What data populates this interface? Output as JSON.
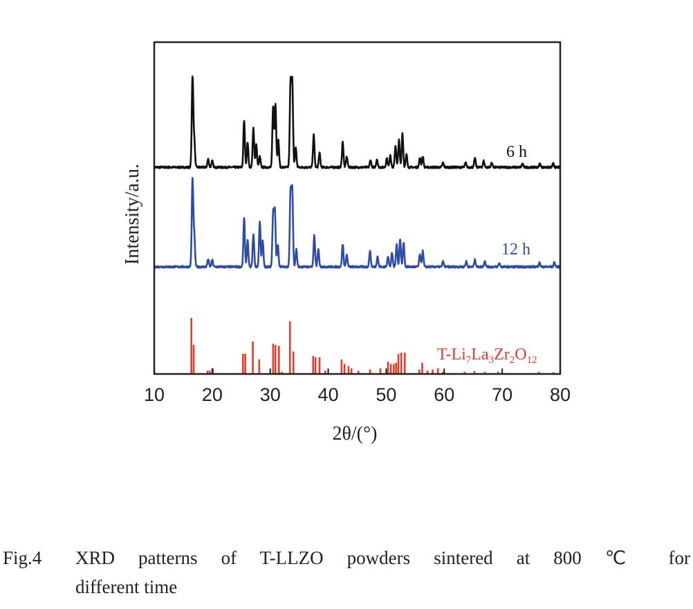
{
  "chart_data": {
    "type": "line",
    "title": "",
    "xlabel": "2θ/(°)",
    "ylabel": "Intensity/a.u.",
    "xlim": [
      10,
      80
    ],
    "xticks": [
      "10",
      "20",
      "30",
      "40",
      "50",
      "60",
      "70",
      "80"
    ],
    "grid": false,
    "series": [
      {
        "name": "6 h",
        "kind": "line",
        "color": "#111111",
        "peaks": [
          [
            16.6,
            1.0
          ],
          [
            16.9,
            0.3
          ],
          [
            19.3,
            0.09
          ],
          [
            20.0,
            0.07
          ],
          [
            25.5,
            0.52
          ],
          [
            26.1,
            0.28
          ],
          [
            27.1,
            0.44
          ],
          [
            27.6,
            0.25
          ],
          [
            28.2,
            0.12
          ],
          [
            30.5,
            0.68
          ],
          [
            30.9,
            0.71
          ],
          [
            31.4,
            0.3
          ],
          [
            33.5,
            0.92
          ],
          [
            33.8,
            0.94
          ],
          [
            34.4,
            0.22
          ],
          [
            37.5,
            0.36
          ],
          [
            38.5,
            0.16
          ],
          [
            42.5,
            0.28
          ],
          [
            43.2,
            0.12
          ],
          [
            47.3,
            0.08
          ],
          [
            48.4,
            0.09
          ],
          [
            50.1,
            0.1
          ],
          [
            50.7,
            0.14
          ],
          [
            51.6,
            0.24
          ],
          [
            52.2,
            0.3
          ],
          [
            52.8,
            0.38
          ],
          [
            53.5,
            0.14
          ],
          [
            55.8,
            0.1
          ],
          [
            56.3,
            0.12
          ],
          [
            59.8,
            0.05
          ],
          [
            63.7,
            0.05
          ],
          [
            65.3,
            0.1
          ],
          [
            66.8,
            0.07
          ],
          [
            68.2,
            0.05
          ],
          [
            73.5,
            0.04
          ],
          [
            76.5,
            0.04
          ],
          [
            78.8,
            0.04
          ]
        ]
      },
      {
        "name": "12 h",
        "kind": "line",
        "color": "#2e4ba6",
        "peaks": [
          [
            16.6,
            1.0
          ],
          [
            16.9,
            0.35
          ],
          [
            19.3,
            0.09
          ],
          [
            20.0,
            0.08
          ],
          [
            25.5,
            0.56
          ],
          [
            26.1,
            0.3
          ],
          [
            27.1,
            0.38
          ],
          [
            28.2,
            0.53
          ],
          [
            28.7,
            0.3
          ],
          [
            30.5,
            0.62
          ],
          [
            30.8,
            0.64
          ],
          [
            31.3,
            0.26
          ],
          [
            33.5,
            0.85
          ],
          [
            33.8,
            0.88
          ],
          [
            34.5,
            0.2
          ],
          [
            37.6,
            0.36
          ],
          [
            38.3,
            0.2
          ],
          [
            42.5,
            0.26
          ],
          [
            43.2,
            0.14
          ],
          [
            47.2,
            0.18
          ],
          [
            48.5,
            0.12
          ],
          [
            50.3,
            0.12
          ],
          [
            51.0,
            0.16
          ],
          [
            51.8,
            0.26
          ],
          [
            52.4,
            0.32
          ],
          [
            53.0,
            0.28
          ],
          [
            55.8,
            0.14
          ],
          [
            56.3,
            0.18
          ],
          [
            59.8,
            0.06
          ],
          [
            63.8,
            0.06
          ],
          [
            65.3,
            0.08
          ],
          [
            67.0,
            0.07
          ],
          [
            69.5,
            0.04
          ],
          [
            76.4,
            0.05
          ],
          [
            79.0,
            0.05
          ]
        ]
      },
      {
        "name": "T-Li7La3Zr2O12",
        "kind": "sticks",
        "color": "#e8392a",
        "peaks": [
          [
            16.4,
            1.0
          ],
          [
            16.8,
            0.52
          ],
          [
            19.2,
            0.06
          ],
          [
            19.6,
            0.06
          ],
          [
            20.1,
            0.1
          ],
          [
            25.3,
            0.36
          ],
          [
            25.7,
            0.36
          ],
          [
            27.0,
            0.58
          ],
          [
            28.1,
            0.26
          ],
          [
            30.5,
            0.54
          ],
          [
            30.9,
            0.52
          ],
          [
            31.5,
            0.5
          ],
          [
            32.0,
            0.04
          ],
          [
            33.4,
            0.94
          ],
          [
            34.0,
            0.4
          ],
          [
            37.4,
            0.32
          ],
          [
            37.8,
            0.3
          ],
          [
            38.5,
            0.3
          ],
          [
            39.5,
            0.06
          ],
          [
            42.3,
            0.26
          ],
          [
            42.8,
            0.18
          ],
          [
            43.5,
            0.14
          ],
          [
            44.0,
            0.1
          ],
          [
            45.2,
            0.06
          ],
          [
            47.2,
            0.08
          ],
          [
            49.0,
            0.1
          ],
          [
            50.3,
            0.22
          ],
          [
            50.8,
            0.18
          ],
          [
            51.3,
            0.18
          ],
          [
            51.7,
            0.2
          ],
          [
            52.1,
            0.36
          ],
          [
            52.6,
            0.38
          ],
          [
            53.2,
            0.38
          ],
          [
            55.7,
            0.08
          ],
          [
            56.2,
            0.2
          ],
          [
            57.1,
            0.06
          ],
          [
            58.0,
            0.08
          ],
          [
            58.9,
            0.1
          ],
          [
            59.8,
            0.04
          ],
          [
            63.5,
            0.04
          ],
          [
            65.2,
            0.05
          ],
          [
            67.0,
            0.04
          ],
          [
            69.3,
            0.04
          ],
          [
            76.3,
            0.04
          ],
          [
            78.8,
            0.03
          ]
        ]
      }
    ]
  },
  "labels": {
    "series_6h": "6 h",
    "series_12h": "12 h",
    "ref_main": "T-Li",
    "ref_sub1": "7",
    "ref_La": "La",
    "ref_sub2": "3",
    "ref_Zr": "Zr",
    "ref_sub3": "2",
    "ref_O": "O",
    "ref_sub4": "12"
  },
  "caption": {
    "figure_number": "Fig.4",
    "line1": "XRD patterns of T-LLZO powders sintered at 800 ℃ for",
    "line2": "different time"
  }
}
